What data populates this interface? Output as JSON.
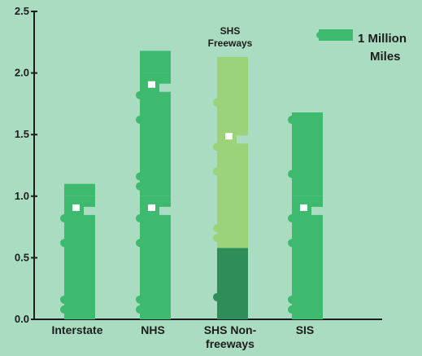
{
  "chart_data": {
    "type": "bar",
    "categories": [
      "Interstate",
      "NHS",
      "SHS Non-freeways",
      "SIS"
    ],
    "category_label_lines": [
      [
        "Interstate"
      ],
      [
        "NHS"
      ],
      [
        "SHS Non-",
        "freeways"
      ],
      [
        "SIS"
      ]
    ],
    "series": [
      {
        "values": [
          1.1,
          2.18,
          0.58,
          1.68
        ]
      },
      {
        "name": "SHS Freeways",
        "values": [
          0,
          0,
          1.55,
          0
        ]
      }
    ],
    "annotation_lines": [
      "SHS",
      "Freeways"
    ],
    "ylim": [
      0,
      2.5
    ],
    "yticks": [
      "0.0",
      "0.5",
      "1.0",
      "1.5",
      "2.0",
      "2.5"
    ],
    "legend": {
      "label_lines": [
        "1 Million",
        "Miles"
      ],
      "unit_value": 1,
      "placement": "top-right"
    },
    "colors": {
      "background": "#a9dcc1",
      "bar": "#3dba6e",
      "bar_light": "#9bd27a",
      "bar_dark": "#2f8d5a",
      "axis": "#1d1d1d"
    },
    "grid": false
  }
}
